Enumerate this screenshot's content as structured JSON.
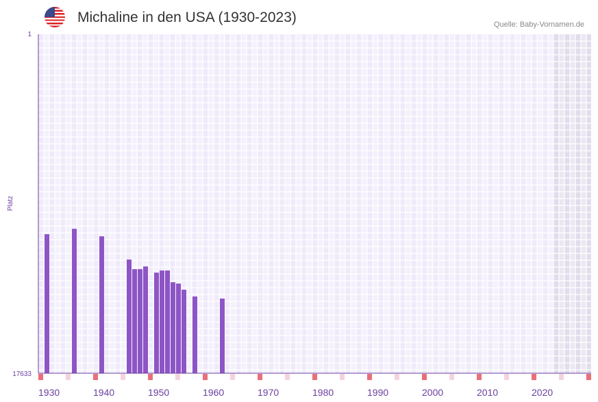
{
  "header": {
    "title": "Michaline in den USA (1930-2023)",
    "source": "Quelle: Baby-Vornamen.de",
    "flag_icon": "usa-flag-icon"
  },
  "chart_data": {
    "type": "bar",
    "title": "Michaline in den USA (1930-2023)",
    "xlabel": "",
    "ylabel": "Platz",
    "x_range": [
      1930,
      2030
    ],
    "y_range": [
      1,
      17633
    ],
    "y_inverted": true,
    "y_ticks": [
      "1",
      "17633"
    ],
    "x_ticks": [
      "1930",
      "1940",
      "1950",
      "1960",
      "1970",
      "1980",
      "1990",
      "2000",
      "2010",
      "2020"
    ],
    "future_shade_from": 2024,
    "x": [
      1931,
      1936,
      1941,
      1946,
      1947,
      1948,
      1949,
      1951,
      1952,
      1953,
      1954,
      1955,
      1956,
      1958,
      1963
    ],
    "values": [
      10400,
      10120,
      10510,
      11720,
      12220,
      12220,
      12080,
      12400,
      12290,
      12290,
      12900,
      12970,
      13290,
      13640,
      13750
    ],
    "colors": {
      "bar": "#8e55c6",
      "axis": "#6b3fa0",
      "decade_marker": "#e8707a",
      "half_decade_marker": "#f4d4dc",
      "plot_bg": "#efeafa",
      "future_bg": "#e2dcec"
    }
  }
}
